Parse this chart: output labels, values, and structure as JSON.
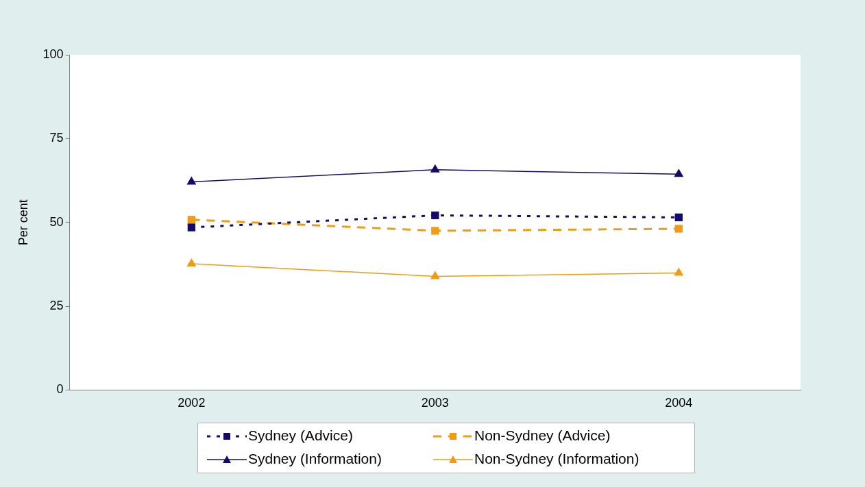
{
  "chart_data": {
    "type": "line",
    "ylabel": "Per cent",
    "categories": [
      "2002",
      "2003",
      "2004"
    ],
    "series": [
      {
        "name": "Sydney (Advice)",
        "color": "#120a6e",
        "values": [
          48.5,
          52.1,
          51.5
        ],
        "marker": "square",
        "line_style": "dotted"
      },
      {
        "name": "Non-Sydney (Advice)",
        "color": "#f29b12",
        "values": [
          50.8,
          47.5,
          48.1
        ],
        "marker": "square",
        "line_style": "dashed"
      },
      {
        "name": "Sydney (Information)",
        "color": "#120a6e",
        "values": [
          62.1,
          65.7,
          64.4
        ],
        "marker": "triangle",
        "line_style": "solid"
      },
      {
        "name": "Non-Sydney (Information)",
        "color": "#f29b12",
        "values": [
          37.7,
          33.9,
          34.9
        ],
        "marker": "triangle",
        "line_style": "solid"
      }
    ],
    "ylim": [
      0,
      100
    ],
    "yticks": [
      0,
      25,
      50,
      75,
      100
    ],
    "grid": false,
    "legend": "bottom"
  }
}
